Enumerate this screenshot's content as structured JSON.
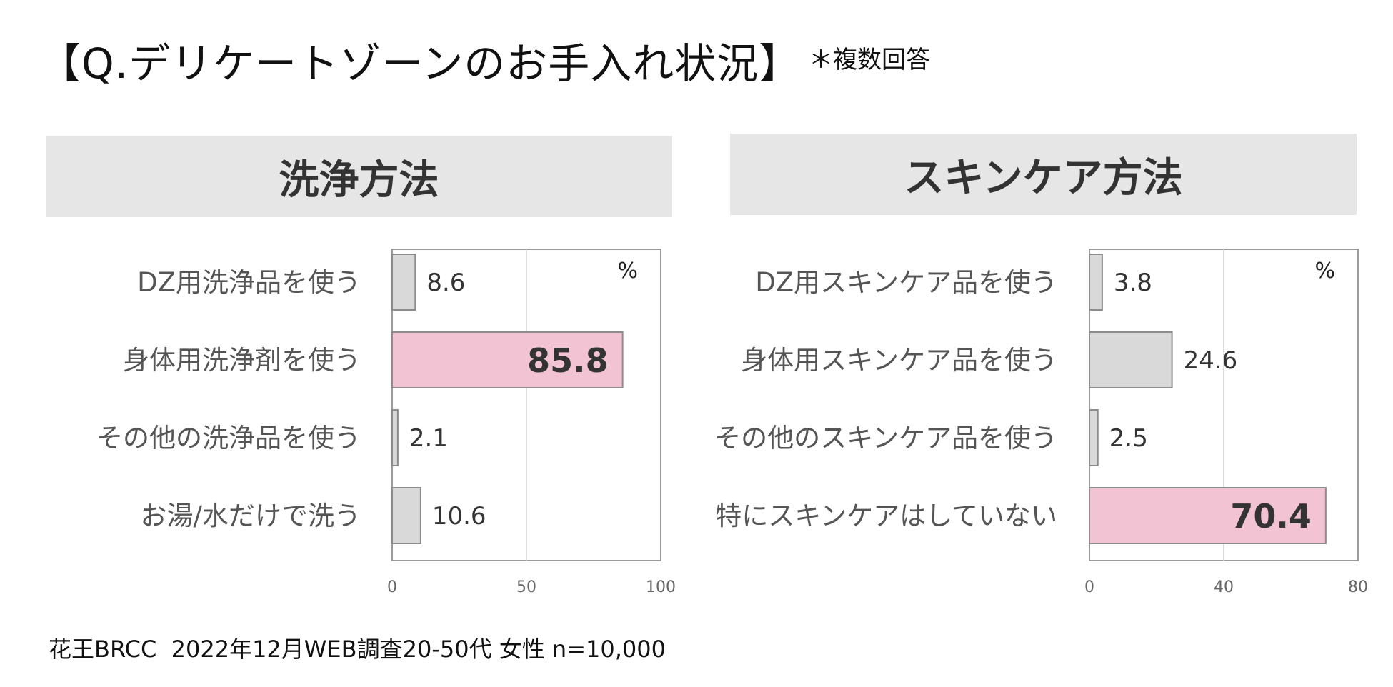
{
  "page": {
    "title": "【Q.デリケートゾーンのお手入れ状況】",
    "title_note": "＊複数回答",
    "footer": "花王BRCC  2022年12月WEB調査20-50代 女性 n=10,000"
  },
  "colors": {
    "default_bar": "#d9d9d9",
    "highlight_bar": "#f2c4d3",
    "header_bg": "#e6e6e6"
  },
  "chart_data": [
    {
      "type": "bar",
      "orientation": "horizontal",
      "title": "洗浄方法",
      "unit": "%",
      "categories": [
        "DZ用洗浄品を使う",
        "身体用洗浄剤を使う",
        "その他の洗浄品を使う",
        "お湯/水だけで洗う"
      ],
      "values": [
        8.6,
        85.8,
        2.1,
        10.6
      ],
      "value_labels": [
        "8.6",
        "85.8",
        "2.1",
        "10.6"
      ],
      "highlight_index": 1,
      "xlim": [
        0,
        100
      ],
      "xticks": [
        0,
        50,
        100
      ],
      "tick_labels": [
        "0",
        "50",
        "100"
      ],
      "grid": true
    },
    {
      "type": "bar",
      "orientation": "horizontal",
      "title": "スキンケア方法",
      "unit": "%",
      "categories": [
        "DZ用スキンケア品を使う",
        "身体用スキンケア品を使う",
        "その他のスキンケア品を使う",
        "特にスキンケアはしていない"
      ],
      "values": [
        3.8,
        24.6,
        2.5,
        70.4
      ],
      "value_labels": [
        "3.8",
        "24.6",
        "2.5",
        "70.4"
      ],
      "highlight_index": 3,
      "xlim": [
        0,
        80
      ],
      "xticks": [
        0,
        40,
        80
      ],
      "tick_labels": [
        "0",
        "40",
        "80"
      ],
      "grid": true
    }
  ]
}
